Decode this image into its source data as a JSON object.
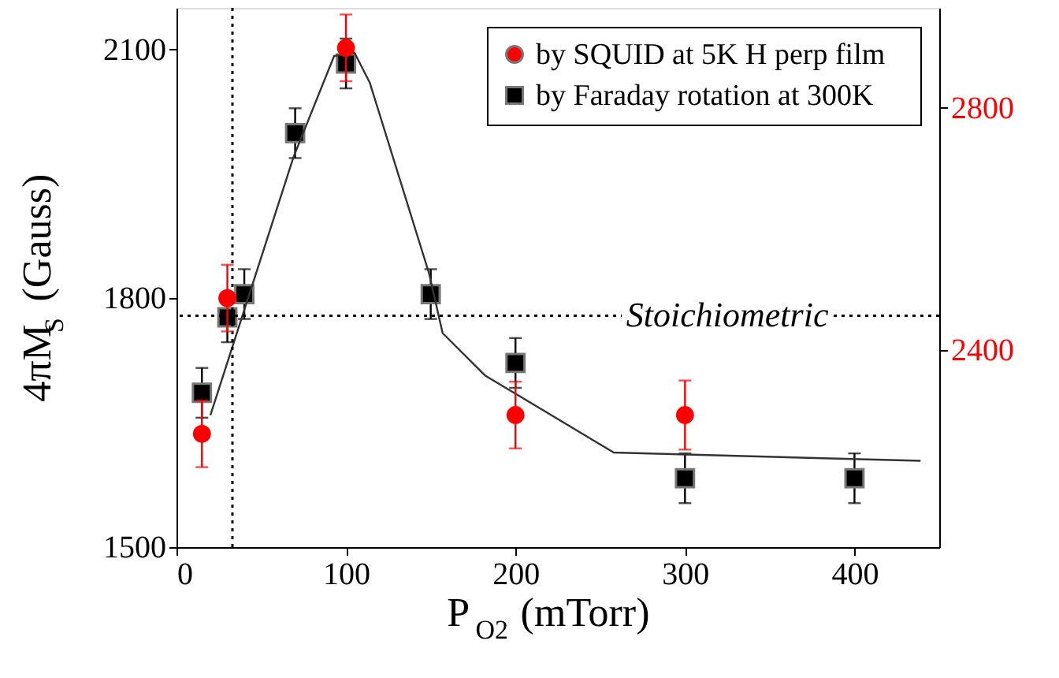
{
  "chart_data": {
    "type": "scatter",
    "xlabel": "P$_{O2}$ (mTorr)",
    "ylabel": "4πM$_{S}$ (Gauss)",
    "xlim": [
      0,
      450
    ],
    "xticks": [
      0,
      100,
      200,
      300,
      400
    ],
    "ylim": [
      1500,
      2150
    ],
    "yticks": [
      1500,
      1800,
      2100
    ],
    "y2lim": [
      2075,
      2965
    ],
    "y2ticks": [
      2400,
      2800
    ],
    "grid": false,
    "legend": "top right",
    "series": [
      {
        "name": "by SQUID at 5K    H perp film",
        "color": "#ff0000",
        "marker": "circle",
        "axis": "y2",
        "x": [
          15,
          30,
          100,
          200,
          300
        ],
        "values": [
          2262,
          2486,
          2899,
          2293,
          2293
        ],
        "errors": [
          55,
          55,
          55,
          55,
          57
        ]
      },
      {
        "name": "by Faraday rotation at 300K",
        "color": "#000000",
        "marker": "square",
        "axis": "y",
        "x": [
          15,
          30,
          40,
          70,
          100,
          150,
          200,
          300,
          400
        ],
        "values": [
          1686,
          1777,
          1805,
          1999,
          2083,
          1805,
          1722,
          1583,
          1583
        ],
        "errors": [
          30,
          30,
          30,
          30,
          30,
          30,
          30,
          30,
          30
        ]
      },
      {
        "color": "#333333",
        "type": "line",
        "marker": "none",
        "line_style": "solid",
        "axis": "y",
        "x": [
          20,
          69,
          93,
          105,
          114,
          149,
          157,
          182,
          258,
          439
        ],
        "values": [
          1659,
          1970,
          2092,
          2096,
          2060,
          1830,
          1758,
          1707,
          1614,
          1604
        ]
      }
    ],
    "ref_lines": [
      {
        "axis": "x",
        "value": 33,
        "line_style": "dotted",
        "color": "#000000"
      },
      {
        "axis": "y",
        "value": 1779,
        "line_style": "dotted",
        "color": "#000000"
      }
    ],
    "annotations": [
      {
        "text": "Stoichiometric",
        "x": 325,
        "y": 1779
      }
    ]
  }
}
